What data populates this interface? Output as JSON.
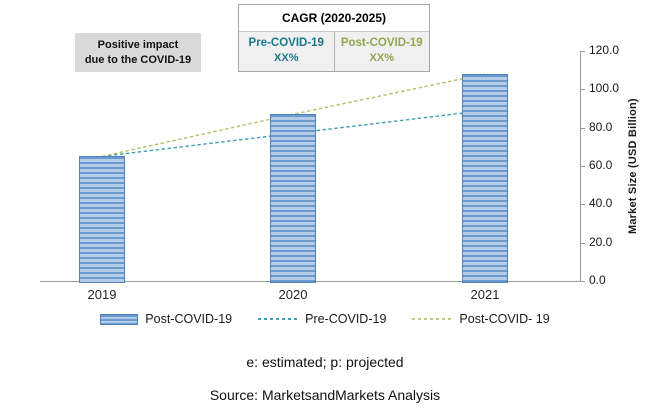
{
  "annotation": {
    "line1": "Positive impact",
    "line2": "due to the COVID-19"
  },
  "cagr_box": {
    "title": "CAGR (2020-2025)",
    "columns": [
      {
        "label": "Pre-COVID-19",
        "value": "XX%"
      },
      {
        "label": "Post-COVID-19",
        "value": "XX%"
      }
    ]
  },
  "chart_data": {
    "type": "bar",
    "categories": [
      "2019",
      "2020",
      "2021"
    ],
    "series": [
      {
        "name": "Post-COVID-19",
        "type": "bar",
        "values": [
          65,
          87,
          108
        ],
        "color": "#699bd1"
      },
      {
        "name": "Pre-COVID-19",
        "type": "line",
        "values": [
          65,
          77,
          89
        ],
        "color": "#3f9fb3"
      },
      {
        "name": "Post-COVID- 19",
        "type": "line",
        "values": [
          65,
          87,
          108
        ],
        "color": "#b2c266"
      }
    ],
    "title": "",
    "xlabel": "",
    "ylabel": "Market Size (USD Billion)",
    "ylim": [
      0,
      120
    ],
    "y_tick_labels": [
      "0.0",
      "20.0",
      "40.0",
      "60.0",
      "80.0",
      "100.0",
      "120.0"
    ],
    "grid": false,
    "legend_position": "bottom"
  },
  "legend": [
    {
      "label": "Post-COVID-19",
      "swatch": "bar"
    },
    {
      "label": "Pre-COVID-19",
      "swatch": "teal-dash"
    },
    {
      "label": "Post-COVID- 19",
      "swatch": "olive-dash"
    }
  ],
  "footnotes": {
    "note": "e: estimated; p: projected",
    "source": "Source: MarketsandMarkets Analysis"
  },
  "colors": {
    "bar_border": "#4f81bd",
    "bar_stripe_dark": "#699bd1",
    "bar_stripe_light": "#b5cce6",
    "pre_covid_teal": "#3f9fb3",
    "post_covid_olive": "#b2c266",
    "annotation_bg": "#d9d9d9",
    "cagr_bottom_bg": "#f0f0f0",
    "axis_gray": "#9a9a9a",
    "pre_covid_text": "#17798c",
    "post_covid_text": "#91a64e"
  }
}
